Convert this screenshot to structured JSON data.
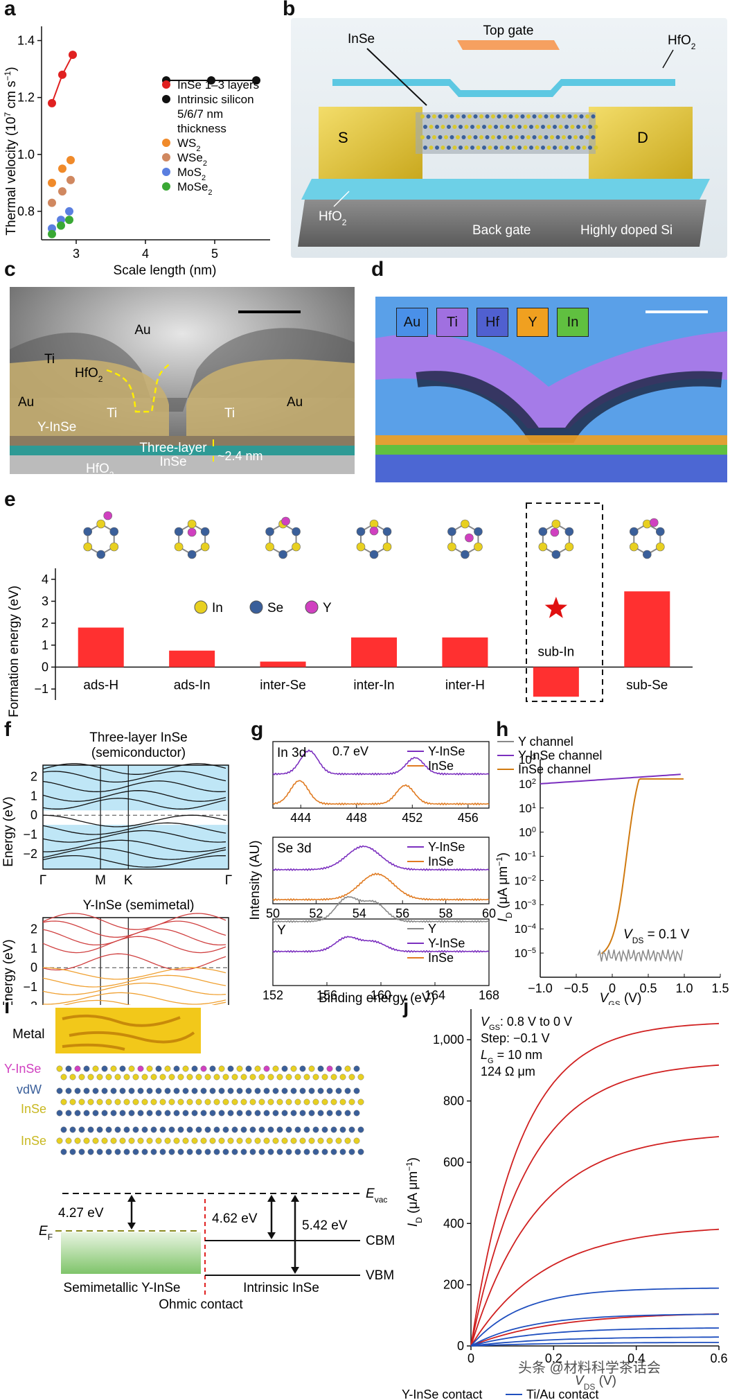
{
  "labels": {
    "a": "a",
    "b": "b",
    "c": "c",
    "d": "d",
    "e": "e",
    "f": "f",
    "g": "g",
    "h": "h",
    "i": "i",
    "j": "j"
  },
  "panel_a": {
    "ylabel_main": "Thermal velocity (10",
    "ylabel_exp1": "7",
    "ylabel_mid": " cm s",
    "ylabel_exp2": "−1",
    "ylabel_end": ")",
    "xlabel": "Scale length (nm)",
    "legend": [
      {
        "name": "InSe 1–3 layers",
        "color": "#e02020"
      },
      {
        "name": "Intrinsic silicon",
        "color": "#111111"
      },
      {
        "name": "5/6/7 nm",
        "color": ""
      },
      {
        "name": "thickness",
        "color": ""
      },
      {
        "name": "WS",
        "sub": "2",
        "color": "#f08a2a"
      },
      {
        "name": "WSe",
        "sub": "2",
        "color": "#d08860"
      },
      {
        "name": "MoS",
        "sub": "2",
        "color": "#5a7fe0"
      },
      {
        "name": "MoSe",
        "sub": "2",
        "color": "#3aa835"
      }
    ]
  },
  "chart_data": [
    {
      "type": "scatter",
      "panel": "a",
      "xlabel": "Scale length (nm)",
      "ylabel": "Thermal velocity (10^7 cm s^-1)",
      "xlim": [
        2.5,
        5.8
      ],
      "ylim": [
        0.7,
        1.45
      ],
      "xticks": [
        "3",
        "4",
        "5"
      ],
      "yticks": [
        "0.8",
        "1.0",
        "1.2",
        "1.4"
      ],
      "series": [
        {
          "name": "InSe 1–3 layers",
          "color": "#e02020",
          "lines": true,
          "x": [
            2.65,
            2.8,
            2.95
          ],
          "y": [
            1.18,
            1.28,
            1.35
          ]
        },
        {
          "name": "Intrinsic silicon",
          "color": "#111111",
          "lines": true,
          "x": [
            4.3,
            4.95,
            5.6
          ],
          "y": [
            1.26,
            1.26,
            1.26
          ]
        },
        {
          "name": "WS2",
          "color": "#f08a2a",
          "x": [
            2.65,
            2.8,
            2.92
          ],
          "y": [
            0.9,
            0.95,
            0.98
          ]
        },
        {
          "name": "WSe2",
          "color": "#d08860",
          "x": [
            2.65,
            2.8,
            2.92
          ],
          "y": [
            0.83,
            0.87,
            0.91
          ]
        },
        {
          "name": "MoS2",
          "color": "#5a7fe0",
          "x": [
            2.65,
            2.78,
            2.9
          ],
          "y": [
            0.74,
            0.77,
            0.8
          ]
        },
        {
          "name": "MoSe2",
          "color": "#3aa835",
          "x": [
            2.65,
            2.78,
            2.9
          ],
          "y": [
            0.72,
            0.75,
            0.77
          ]
        }
      ]
    },
    {
      "type": "bar",
      "panel": "e",
      "ylabel": "Formation energy (eV)",
      "categories": [
        "ads-H",
        "ads-In",
        "inter-Se",
        "inter-In",
        "inter-H",
        "sub-In",
        "sub-Se"
      ],
      "values": [
        1.8,
        0.75,
        0.25,
        1.35,
        1.35,
        -1.35,
        3.45
      ],
      "ylim": [
        -1.5,
        4.5
      ],
      "yticks": [
        "−1",
        "0",
        "1",
        "2",
        "3",
        "4"
      ],
      "color": "#ff3030"
    },
    {
      "type": "line",
      "panel": "h",
      "xlabel": "V_GS (V)",
      "ylabel": "I_D (μA μm^-1)",
      "xlim": [
        -1.0,
        1.5
      ],
      "ylog": true,
      "ylim_exp": [
        -6,
        3
      ],
      "xticks": [
        "−1.0",
        "−0.5",
        "0",
        "0.5",
        "1.0",
        "1.5"
      ],
      "yticks": [
        "10^-5",
        "10^-4",
        "10^-3",
        "10^-2",
        "10^-1",
        "10^0",
        "10^1",
        "10^2",
        "10^3"
      ],
      "series": [
        {
          "name": "Y channel",
          "color": "#888888"
        },
        {
          "name": "Y-InSe channel",
          "color": "#7b2fbf"
        },
        {
          "name": "InSe channel",
          "color": "#d07a10"
        }
      ]
    },
    {
      "type": "line",
      "panel": "j",
      "xlabel": "V_DS (V)",
      "ylabel": "I_D (μA μm^-1)",
      "xlim": [
        0,
        0.6
      ],
      "ylim": [
        0,
        1100
      ],
      "xticks": [
        "0",
        "0.2",
        "0.4",
        "0.6"
      ],
      "yticks": [
        "0",
        "200",
        "400",
        "600",
        "800",
        "1,000"
      ],
      "series": [
        {
          "name": "Y-InSe contact",
          "color": "#d02020",
          "finals": [
            1060,
            930,
            700,
            395,
            110
          ]
        },
        {
          "name": "Ti/Au contact",
          "color": "#1f4fbf",
          "finals": [
            190,
            105,
            60,
            30,
            12
          ]
        }
      ]
    }
  ],
  "panel_b": {
    "top_gate": "Top gate",
    "hfo2_top": "HfO",
    "hfo2_sub": "2",
    "inse": "InSe",
    "s": "S",
    "d": "D",
    "hfo2_bottom": "HfO",
    "back_gate": "Back gate",
    "doped_si": "Highly doped Si"
  },
  "panel_c": {
    "au_top": "Au",
    "ti_left": "Ti",
    "hfo2": "HfO",
    "hfo2_sub": "2",
    "au_left": "Au",
    "au_right": "Au",
    "ti_mid": "Ti",
    "ti_right": "Ti",
    "yinse": "Y-InSe",
    "three_layer": "Three-layer",
    "inse": "InSe",
    "thickness": "~2.4 nm",
    "hfo2_bottom": "HfO"
  },
  "panel_d": {
    "elements": [
      {
        "name": "Au",
        "color": "#4a90e8"
      },
      {
        "name": "Ti",
        "color": "#a070e0"
      },
      {
        "name": "Hf",
        "color": "#5060d0"
      },
      {
        "name": "Y",
        "color": "#f0a020"
      },
      {
        "name": "In",
        "color": "#60c040"
      }
    ]
  },
  "panel_e": {
    "ylabel": "Formation energy (eV)",
    "legend": [
      {
        "name": "In",
        "color": "#e8d020"
      },
      {
        "name": "Se",
        "color": "#3a5f9a"
      },
      {
        "name": "Y",
        "color": "#d040c0"
      }
    ]
  },
  "panel_f": {
    "top_title1": "Three-layer InSe",
    "top_title2": "(semiconductor)",
    "bottom_title": "Y-InSe (semimetal)",
    "ylabel": "Energy (eV)",
    "kpoints": [
      "Γ",
      "M",
      "K",
      "Γ"
    ],
    "yticks_top": [
      "−2",
      "−1",
      "0",
      "1",
      "2"
    ],
    "yticks_bottom": [
      "−2",
      "−1",
      "0",
      "1",
      "2"
    ]
  },
  "panel_g": {
    "in3d": "In 3d",
    "delta": "0.7 eV",
    "se3d": "Se 3d",
    "y": "Y",
    "legend1": [
      "Y-InSe",
      "InSe"
    ],
    "legend3": [
      "Y",
      "Y-InSe",
      "InSe"
    ],
    "xticks1": [
      "444",
      "448",
      "452",
      "456"
    ],
    "xticks2": [
      "50",
      "52",
      "54",
      "56",
      "58",
      "60"
    ],
    "xticks3": [
      "152",
      "156",
      "160",
      "164",
      "168"
    ],
    "ylabel": "Intensity (AU)",
    "xlabel": "Binding energy (eV)"
  },
  "panel_h": {
    "vds": "V",
    "vds_sub": "DS",
    "vds_val": " = 0.1 V",
    "xlabel": "V",
    "xlabel_sub": "GS",
    "xlabel_unit": " (V)",
    "ylabel": "I",
    "ylabel_sub": "D",
    "ylabel_unit": " (μA μm"
  },
  "panel_i": {
    "metal": "Metal",
    "yinse": "Y-InSe",
    "vdw": "vdW",
    "inse1": "InSe",
    "inse2": "InSe",
    "evac": "E",
    "evac_sub": "vac",
    "ef": "E",
    "ef_sub": "F",
    "cbm": "CBM",
    "vbm": "VBM",
    "wf1": "4.27 eV",
    "wf2": "4.62 eV",
    "wf3": "5.42 eV",
    "semi": "Semimetallic Y-InSe",
    "intrinsic": "Intrinsic InSe",
    "ohmic": "Ohmic contact"
  },
  "panel_j": {
    "vgs_line1": "V",
    "vgs_sub": "GS",
    "vgs_rest": ": 0.8 V to 0 V",
    "step": "Step: −0.1 V",
    "lg": "L",
    "lg_sub": "G",
    "lg_rest": " = 10 nm",
    "res": "124 Ω μm",
    "legend": [
      "Y-InSe contact",
      "Ti/Au contact"
    ],
    "xlabel": "V",
    "xlabel_sub": "DS",
    "xlabel_unit": " (V)"
  },
  "watermark": "头条 @材料科学茶话会"
}
